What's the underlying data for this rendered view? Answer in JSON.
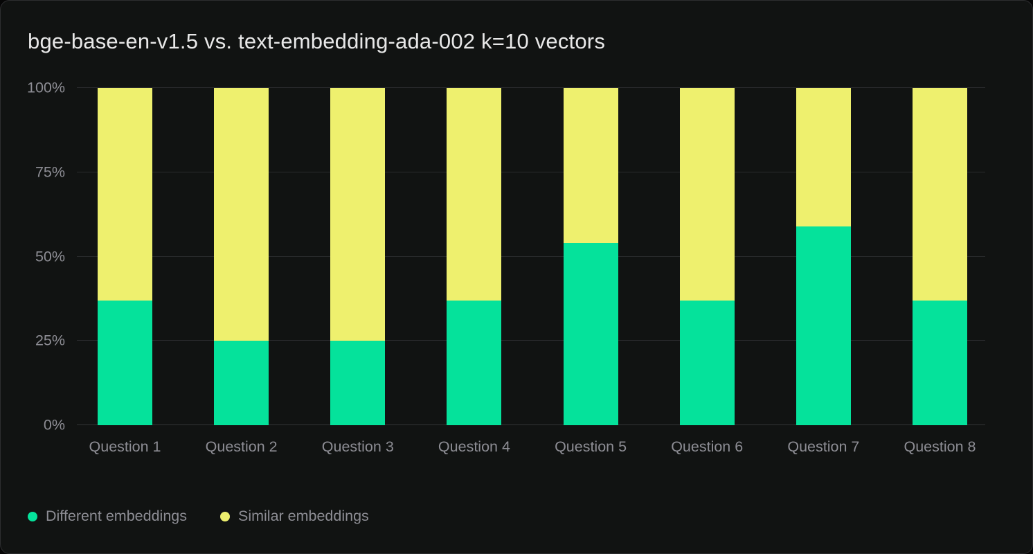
{
  "card": {
    "title": "bge-base-en-v1.5 vs. text-embedding-ada-002 k=10 vectors"
  },
  "colors": {
    "card_background": "#111312",
    "card_border": "#2d2e30",
    "title_text": "#e8e8e8",
    "axis_text": "#8d8d94",
    "gridline": "#2a2b2d",
    "different_green": "#05e29b",
    "similar_yellow": "#eef06e"
  },
  "chart_data": {
    "type": "bar",
    "stacked": true,
    "title": "bge-base-en-v1.5 vs. text-embedding-ada-002 k=10 vectors",
    "categories": [
      "Question 1",
      "Question 2",
      "Question 3",
      "Question 4",
      "Question 5",
      "Question 6",
      "Question 7",
      "Question 8"
    ],
    "series": [
      {
        "name": "Different embeddings",
        "color": "#05e29b",
        "values": [
          37,
          25,
          25,
          37,
          54,
          37,
          59,
          37
        ]
      },
      {
        "name": "Similar embeddings",
        "color": "#eef06e",
        "values": [
          63,
          75,
          75,
          63,
          46,
          63,
          41,
          63
        ]
      }
    ],
    "xlabel": "",
    "ylabel": "",
    "ylim": [
      0,
      100
    ],
    "yticks": [
      {
        "value": 0,
        "label": "0%"
      },
      {
        "value": 25,
        "label": "25%"
      },
      {
        "value": 50,
        "label": "50%"
      },
      {
        "value": 75,
        "label": "75%"
      },
      {
        "value": 100,
        "label": "100%"
      }
    ],
    "grid": true,
    "legend_position": "bottom-left"
  }
}
